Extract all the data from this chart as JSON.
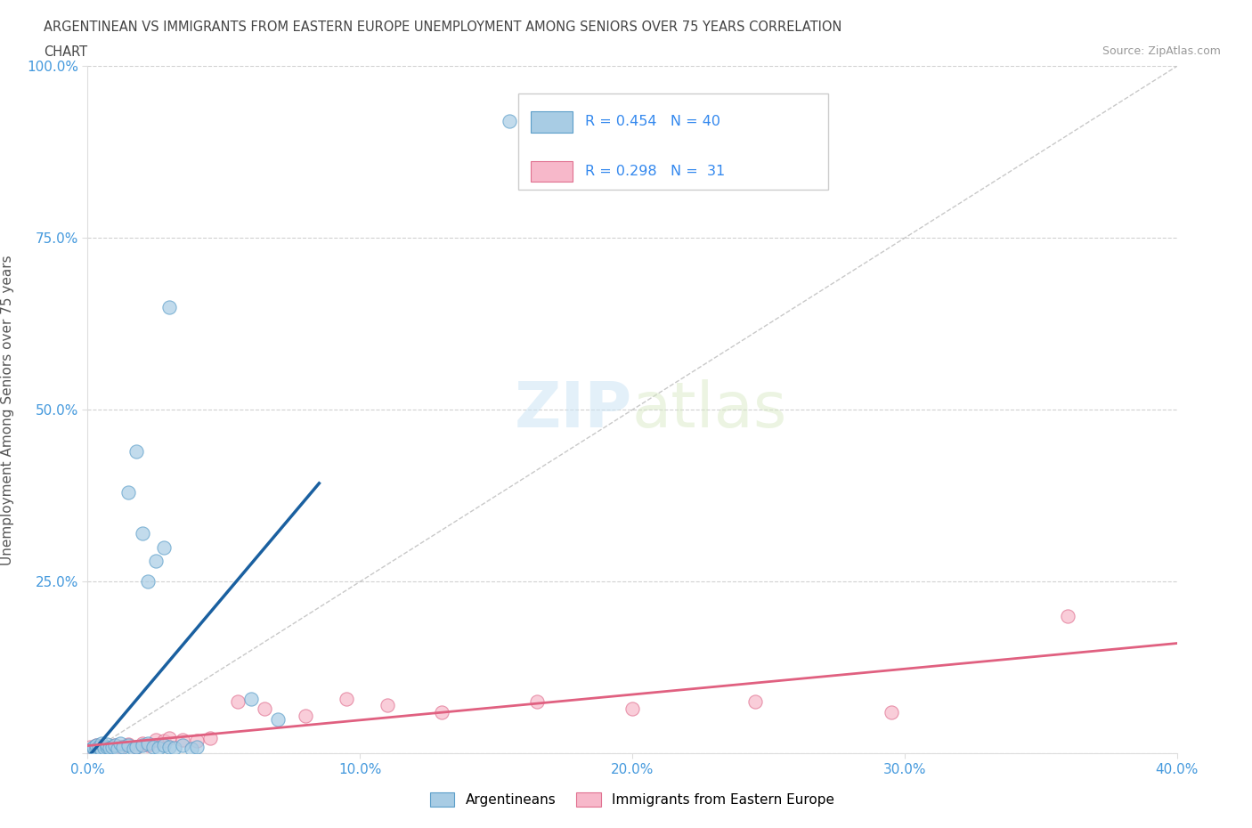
{
  "title_line1": "ARGENTINEAN VS IMMIGRANTS FROM EASTERN EUROPE UNEMPLOYMENT AMONG SENIORS OVER 75 YEARS CORRELATION",
  "title_line2": "CHART",
  "source_text": "Source: ZipAtlas.com",
  "ylabel": "Unemployment Among Seniors over 75 years",
  "xlim": [
    0.0,
    0.4
  ],
  "ylim": [
    0.0,
    1.0
  ],
  "x_tick_labels": [
    "0.0%",
    "10.0%",
    "20.0%",
    "30.0%",
    "40.0%"
  ],
  "y_tick_labels": [
    "",
    "25.0%",
    "50.0%",
    "75.0%",
    "100.0%"
  ],
  "blue_fill": "#a8cce4",
  "blue_edge": "#5b9ec9",
  "blue_line": "#1a60a0",
  "pink_fill": "#f7b8ca",
  "pink_edge": "#e07090",
  "pink_line": "#e06080",
  "R_blue": 0.454,
  "N_blue": 40,
  "R_pink": 0.298,
  "N_pink": 31,
  "legend_label_blue": "Argentineans",
  "legend_label_pink": "Immigrants from Eastern Europe",
  "watermark_zip": "ZIP",
  "watermark_atlas": "atlas",
  "blue_x": [
    0.001,
    0.002,
    0.002,
    0.003,
    0.003,
    0.004,
    0.005,
    0.005,
    0.006,
    0.007,
    0.007,
    0.008,
    0.009,
    0.01,
    0.011,
    0.012,
    0.013,
    0.015,
    0.017,
    0.018,
    0.02,
    0.022,
    0.024,
    0.026,
    0.028,
    0.03,
    0.032,
    0.035,
    0.038,
    0.04,
    0.015,
    0.018,
    0.02,
    0.022,
    0.025,
    0.028,
    0.06,
    0.07,
    0.03,
    0.155
  ],
  "blue_y": [
    0.005,
    0.008,
    0.01,
    0.007,
    0.012,
    0.009,
    0.006,
    0.015,
    0.008,
    0.01,
    0.013,
    0.008,
    0.01,
    0.012,
    0.007,
    0.015,
    0.009,
    0.012,
    0.007,
    0.01,
    0.012,
    0.015,
    0.01,
    0.008,
    0.012,
    0.01,
    0.008,
    0.012,
    0.007,
    0.01,
    0.38,
    0.44,
    0.32,
    0.25,
    0.28,
    0.3,
    0.08,
    0.05,
    0.65,
    0.92
  ],
  "pink_x": [
    0.001,
    0.002,
    0.003,
    0.004,
    0.005,
    0.006,
    0.007,
    0.008,
    0.01,
    0.012,
    0.015,
    0.018,
    0.02,
    0.022,
    0.025,
    0.028,
    0.03,
    0.035,
    0.04,
    0.045,
    0.055,
    0.065,
    0.08,
    0.095,
    0.11,
    0.13,
    0.165,
    0.2,
    0.245,
    0.295,
    0.36
  ],
  "pink_y": [
    0.01,
    0.008,
    0.012,
    0.009,
    0.011,
    0.007,
    0.01,
    0.008,
    0.012,
    0.009,
    0.013,
    0.01,
    0.015,
    0.012,
    0.02,
    0.018,
    0.022,
    0.02,
    0.018,
    0.022,
    0.075,
    0.065,
    0.055,
    0.08,
    0.07,
    0.06,
    0.075,
    0.065,
    0.075,
    0.06,
    0.2
  ]
}
